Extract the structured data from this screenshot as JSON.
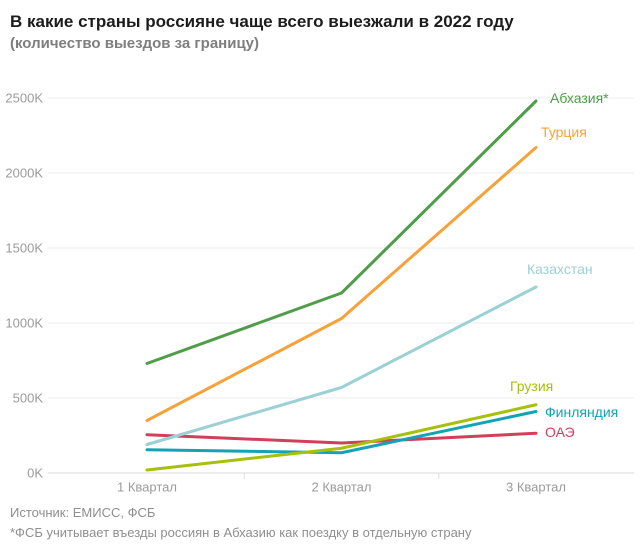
{
  "header": {
    "title": "В какие страны россияне чаще всего выезжали в 2022 году",
    "subtitle": "(количество выездов за границу)"
  },
  "chart_data": {
    "type": "line",
    "title": "В какие страны россияне чаще всего выезжали в 2022 году",
    "subtitle": "(количество выездов за границу)",
    "x_categories": [
      "1 Квартал",
      "2 Квартал",
      "3 Квартал"
    ],
    "value_unit": "thousands of trips (K)",
    "ylim": [
      0,
      2500
    ],
    "yticks": [
      0,
      500,
      1000,
      1500,
      2000,
      2500
    ],
    "ytick_labels": [
      "0K",
      "500K",
      "1000K",
      "1500K",
      "2000K",
      "2500K"
    ],
    "grid": "horizontal",
    "legend_position": "end-of-line labels, right side",
    "series": [
      {
        "id": "abkhazia",
        "name": "Абхазия*",
        "color": "#4f9d48",
        "values": [
          730,
          1200,
          2480
        ],
        "label_pos": {
          "x": 550,
          "y": 98
        }
      },
      {
        "id": "turkey",
        "name": "Турция",
        "color": "#f7a239",
        "values": [
          350,
          1030,
          2170
        ],
        "label_pos": {
          "x": 541,
          "y": 132
        }
      },
      {
        "id": "kazakhstan",
        "name": "Казахстан",
        "color": "#9bd0d4",
        "values": [
          190,
          570,
          1240
        ],
        "label_pos": {
          "x": 527,
          "y": 269
        }
      },
      {
        "id": "georgia",
        "name": "Грузия",
        "color": "#a6c00d",
        "values": [
          20,
          165,
          455
        ],
        "label_pos": {
          "x": 510,
          "y": 386
        }
      },
      {
        "id": "finland",
        "name": "Финляндия",
        "color": "#12a3b4",
        "values": [
          155,
          135,
          410
        ],
        "label_pos": {
          "x": 545,
          "y": 412
        }
      },
      {
        "id": "uae",
        "name": "ОАЭ",
        "color": "#d23f5b",
        "values": [
          255,
          200,
          265
        ],
        "label_pos": {
          "x": 545,
          "y": 432
        }
      }
    ]
  },
  "footer": {
    "source": "Источник: ЕМИСС, ФСБ",
    "note": "*ФСБ учитывает въезды россиян в Абхазию как поездку в отдельную страну"
  },
  "colors": {
    "title": "#1c1c1c",
    "subtitle": "#7e7e7e",
    "axis_text": "#9b9b9b",
    "gridline": "#ececec",
    "baseline": "#d9d9d9",
    "footer_text": "#8f8f8f"
  }
}
